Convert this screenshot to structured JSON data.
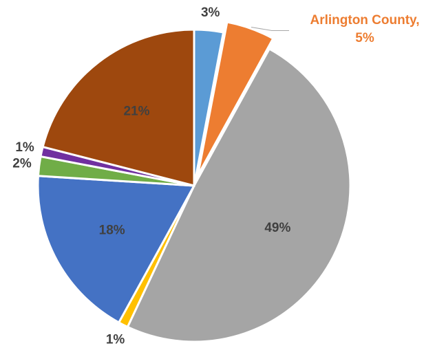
{
  "chart_data": {
    "type": "pie",
    "categories": [
      null,
      "Arlington County,",
      null,
      null,
      null,
      null,
      null,
      null
    ],
    "values": [
      3,
      5,
      49,
      1,
      18,
      2,
      1,
      21
    ],
    "value_labels": [
      "3%",
      "5%",
      "49%",
      "1%",
      "18%",
      "2%",
      "1%",
      "21%"
    ],
    "colors": [
      "#5b9bd5",
      "#ed7d31",
      "#a5a5a5",
      "#ffc000",
      "#4472c4",
      "#70ad47",
      "#7030a0",
      "#9e480e"
    ]
  }
}
